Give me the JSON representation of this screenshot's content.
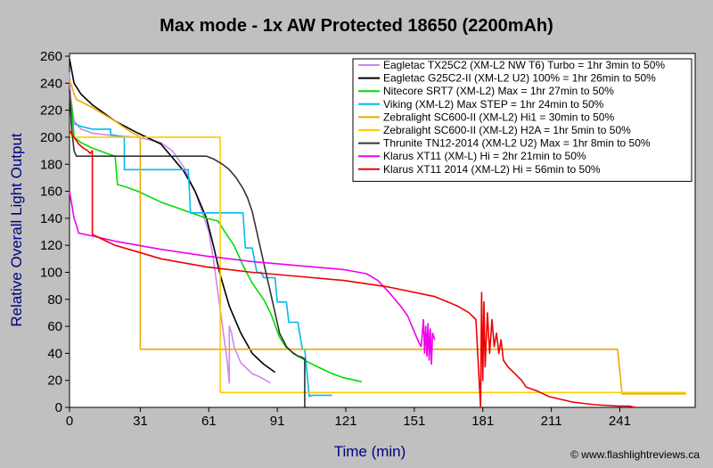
{
  "chart_data": {
    "type": "line",
    "title": "Max mode - 1x AW Protected 18650 (2200mAh)",
    "xlabel": "Time (min)",
    "ylabel": "Relative Overall Light Output",
    "xlim": [
      0,
      274
    ],
    "ylim": [
      0,
      262
    ],
    "xticks": [
      0,
      31,
      61,
      91,
      121,
      151,
      181,
      211,
      241
    ],
    "yticks": [
      0,
      20,
      40,
      60,
      80,
      100,
      120,
      140,
      160,
      180,
      200,
      220,
      240,
      260
    ],
    "grid": false,
    "legend_position": "top-right",
    "credit": "© www.flashlightreviews.ca",
    "series": [
      {
        "name": "Eagletac TX25C2 (XM-L2 NW T6) Turbo = 1hr 3min to 50%",
        "color": "#cc88ee",
        "x": [
          0,
          0.5,
          2,
          5,
          10,
          20,
          30,
          40,
          45,
          50,
          55,
          58,
          61,
          63,
          65,
          67,
          69,
          70,
          70,
          71,
          72,
          75,
          80,
          84,
          88
        ],
        "y": [
          248,
          230,
          212,
          206,
          203,
          201,
          200,
          196,
          190,
          178,
          160,
          145,
          130,
          110,
          85,
          60,
          35,
          18,
          60,
          55,
          45,
          33,
          25,
          22,
          18
        ]
      },
      {
        "name": "Eagletac G25C2-II (XM-L2 U2) 100% = 1hr 26min to 50%",
        "color": "#000000",
        "x": [
          0,
          2,
          5,
          10,
          20,
          30,
          40,
          50,
          55,
          60,
          63,
          66,
          70,
          75,
          80,
          85,
          90
        ],
        "y": [
          258,
          240,
          232,
          224,
          212,
          203,
          195,
          175,
          160,
          140,
          120,
          98,
          75,
          55,
          40,
          32,
          26
        ]
      },
      {
        "name": "Nitecore SRT7 (XM-L2) Max = 1hr 27min to 50%",
        "color": "#00dd00",
        "x": [
          0,
          1,
          2,
          5,
          10,
          18,
          20,
          21,
          25,
          30,
          40,
          50,
          60,
          65,
          68,
          72,
          76,
          80,
          85,
          88,
          92,
          95,
          100,
          105,
          110,
          115,
          120,
          128
        ],
        "y": [
          230,
          222,
          200,
          196,
          192,
          187,
          186,
          165,
          163,
          160,
          152,
          146,
          140,
          138,
          130,
          120,
          105,
          92,
          80,
          70,
          52,
          44,
          38,
          33,
          29,
          25,
          22,
          19
        ]
      },
      {
        "name": "Viking (XM-L2) Max STEP = 1hr 24min to 50%",
        "color": "#00bbee",
        "x": [
          0,
          2,
          5,
          10,
          15,
          18,
          18,
          24,
          24,
          30,
          38,
          45,
          52,
          53,
          62,
          70,
          76,
          77,
          80,
          82,
          84,
          85,
          90,
          91,
          95,
          96,
          100,
          102,
          103,
          105,
          106,
          110,
          115
        ],
        "y": [
          212,
          210,
          208,
          206,
          206,
          206,
          202,
          200,
          176,
          176,
          176,
          176,
          176,
          144,
          144,
          144,
          144,
          118,
          118,
          100,
          100,
          96,
          96,
          78,
          78,
          63,
          63,
          43,
          43,
          8,
          9,
          9,
          9
        ]
      },
      {
        "name": "Zebralight SC600-II (XM-L2) Hi1 = 30min to 50%",
        "color": "#eeaa00",
        "x": [
          0,
          1,
          2,
          3,
          10,
          20,
          25,
          28,
          30,
          31,
          31,
          50,
          70,
          100,
          150,
          200,
          240,
          242,
          270
        ],
        "y": [
          242,
          238,
          232,
          228,
          222,
          212,
          206,
          203,
          201,
          200,
          43,
          43,
          43,
          43,
          43,
          43,
          43,
          10,
          10
        ]
      },
      {
        "name": "Zebralight SC600-II (XM-L2) H2A = 1hr 5min to 50%",
        "color": "#ffcc00",
        "x": [
          0,
          1,
          1,
          10,
          20,
          30,
          40,
          50,
          55,
          65,
          66,
          66,
          100,
          150,
          200,
          270
        ],
        "y": [
          202,
          202,
          200,
          200,
          200,
          200,
          200,
          200,
          200,
          200,
          200,
          11,
          11,
          11,
          11,
          11
        ]
      },
      {
        "name": "Thrunite TN12-2014 (XM-L2 U2) Max = 1hr 8min to 50%",
        "color": "#333333",
        "x": [
          0,
          0.5,
          1,
          2,
          3,
          4,
          5,
          15,
          30,
          50,
          60,
          63,
          65,
          67,
          70,
          73,
          76,
          78,
          80,
          82,
          84,
          86,
          88,
          90,
          92,
          95,
          98,
          100,
          102,
          103,
          103,
          104
        ],
        "y": [
          235,
          220,
          205,
          190,
          186,
          186,
          186,
          186,
          186,
          186,
          186,
          184,
          182,
          180,
          176,
          170,
          162,
          155,
          145,
          130,
          115,
          100,
          85,
          70,
          55,
          45,
          40,
          38,
          37,
          36,
          0,
          0
        ]
      },
      {
        "name": "Klarus XT11 (XM-L) Hi = 2hr 21min to 50%",
        "color": "#ee00ee",
        "x": [
          0,
          1,
          2,
          3,
          4,
          10,
          20,
          40,
          60,
          80,
          100,
          120,
          130,
          135,
          140,
          145,
          148,
          150,
          152,
          153,
          154,
          155,
          155.5,
          156,
          156.5,
          157,
          157.5,
          158,
          158.5,
          159,
          160
        ],
        "y": [
          160,
          150,
          140,
          135,
          129,
          127,
          123,
          117,
          112,
          108,
          105,
          102,
          99,
          94,
          85,
          75,
          68,
          60,
          52,
          48,
          45,
          65,
          40,
          60,
          38,
          62,
          35,
          58,
          32,
          55,
          50
        ]
      },
      {
        "name": "Klarus XT11 2014 (XM-L2) Hi = 56min to 50%",
        "color": "#ee0000",
        "x": [
          0,
          2,
          4,
          6,
          8,
          9,
          10,
          10,
          15,
          20,
          30,
          40,
          60,
          80,
          100,
          120,
          140,
          160,
          170,
          175,
          178,
          180,
          180.5,
          181,
          181.5,
          182,
          183,
          184,
          185,
          186,
          187,
          188,
          189,
          190,
          192,
          195,
          198,
          200,
          205,
          210,
          215,
          220,
          225,
          230,
          240,
          245,
          248
        ],
        "y": [
          205,
          200,
          195,
          192,
          190,
          188,
          190,
          128,
          124,
          120,
          115,
          110,
          104,
          100,
          97,
          94,
          89,
          82,
          75,
          70,
          65,
          0,
          85,
          20,
          78,
          30,
          70,
          40,
          65,
          45,
          55,
          40,
          50,
          35,
          30,
          25,
          20,
          15,
          12,
          8,
          6,
          4,
          3,
          2,
          1,
          1,
          0
        ]
      }
    ]
  }
}
